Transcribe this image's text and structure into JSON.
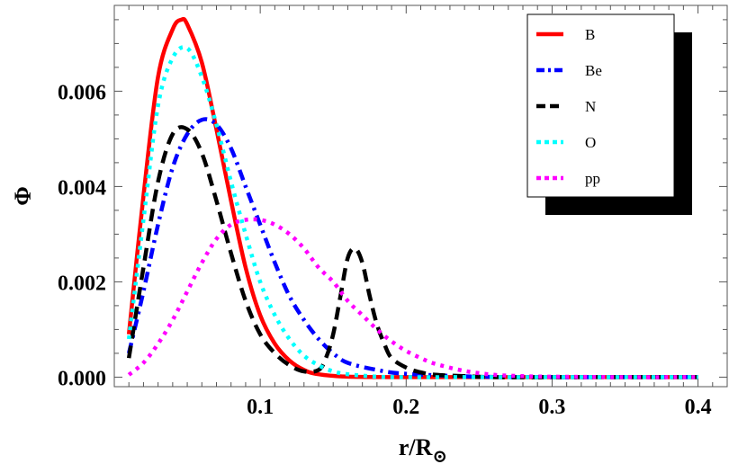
{
  "chart_data": {
    "type": "line",
    "title": "",
    "xlabel": "r/R",
    "xlabel_subscript": "⊙",
    "ylabel": "Φ",
    "xlim": [
      0.0,
      0.42
    ],
    "ylim": [
      -0.0002,
      0.0078
    ],
    "xticks": [
      0.1,
      0.2,
      0.3,
      0.4
    ],
    "xtick_labels": [
      "0.1",
      "0.2",
      "0.3",
      "0.4"
    ],
    "yticks": [
      0.0,
      0.002,
      0.004,
      0.006
    ],
    "ytick_labels": [
      "0.000",
      "0.002",
      "0.004",
      "0.006"
    ],
    "legend_position": "top-right",
    "series": [
      {
        "name": "B",
        "color": "#ff0000",
        "dash": "solid",
        "x": [
          0.01,
          0.02,
          0.03,
          0.04,
          0.046,
          0.05,
          0.06,
          0.07,
          0.08,
          0.09,
          0.1,
          0.11,
          0.12,
          0.13,
          0.14,
          0.16,
          0.2,
          0.25,
          0.3,
          0.35,
          0.4
        ],
        "y": [
          0.0009,
          0.0038,
          0.0063,
          0.0073,
          0.0075,
          0.0074,
          0.0066,
          0.0052,
          0.0037,
          0.0023,
          0.0013,
          0.0007,
          0.00035,
          0.00015,
          6e-05,
          1e-05,
          0.0,
          0.0,
          0.0,
          0.0,
          0.0
        ]
      },
      {
        "name": "Be",
        "color": "#0000ff",
        "dash": "dashdot",
        "x": [
          0.01,
          0.02,
          0.03,
          0.04,
          0.05,
          0.06,
          0.07,
          0.08,
          0.09,
          0.1,
          0.11,
          0.12,
          0.13,
          0.14,
          0.15,
          0.16,
          0.18,
          0.2,
          0.25,
          0.3,
          0.35,
          0.4
        ],
        "y": [
          0.0005,
          0.0018,
          0.0032,
          0.0044,
          0.0051,
          0.0054,
          0.0053,
          0.0048,
          0.004,
          0.0032,
          0.0024,
          0.0017,
          0.0012,
          0.0008,
          0.0005,
          0.0003,
          0.00015,
          7e-05,
          1e-05,
          0.0,
          0.0,
          0.0
        ]
      },
      {
        "name": "N",
        "color": "#000000",
        "dash": "dashed",
        "x": [
          0.01,
          0.02,
          0.03,
          0.04,
          0.05,
          0.06,
          0.07,
          0.08,
          0.09,
          0.1,
          0.11,
          0.12,
          0.13,
          0.14,
          0.145,
          0.15,
          0.155,
          0.16,
          0.165,
          0.17,
          0.175,
          0.18,
          0.185,
          0.19,
          0.2,
          0.21,
          0.22,
          0.24,
          0.26,
          0.3,
          0.35,
          0.4
        ],
        "y": [
          0.0004,
          0.0023,
          0.0041,
          0.0051,
          0.0052,
          0.0047,
          0.0037,
          0.0026,
          0.0016,
          0.0009,
          0.0005,
          0.00025,
          0.00012,
          0.00015,
          0.0004,
          0.0009,
          0.0017,
          0.0025,
          0.0027,
          0.0024,
          0.0017,
          0.0011,
          0.0007,
          0.0004,
          0.0002,
          0.0001,
          5e-05,
          2e-05,
          0.0,
          0.0,
          0.0,
          0.0
        ]
      },
      {
        "name": "O",
        "color": "#00ffff",
        "dash": "dotted",
        "x": [
          0.01,
          0.02,
          0.03,
          0.04,
          0.05,
          0.06,
          0.07,
          0.08,
          0.09,
          0.1,
          0.11,
          0.12,
          0.13,
          0.14,
          0.15,
          0.16,
          0.18,
          0.2,
          0.25,
          0.3,
          0.35,
          0.4
        ],
        "y": [
          0.0008,
          0.0033,
          0.0057,
          0.0067,
          0.0069,
          0.0063,
          0.0053,
          0.0041,
          0.003,
          0.002,
          0.0013,
          0.0008,
          0.00045,
          0.00025,
          0.00012,
          6e-05,
          1e-05,
          0.0,
          0.0,
          0.0,
          0.0,
          0.0
        ]
      },
      {
        "name": "pp",
        "color": "#ff00ff",
        "dash": "dotted",
        "x": [
          0.01,
          0.02,
          0.03,
          0.04,
          0.05,
          0.06,
          0.07,
          0.08,
          0.09,
          0.1,
          0.11,
          0.12,
          0.13,
          0.14,
          0.15,
          0.16,
          0.17,
          0.18,
          0.19,
          0.2,
          0.21,
          0.22,
          0.24,
          0.26,
          0.28,
          0.3,
          0.35,
          0.4
        ],
        "y": [
          5e-05,
          0.0003,
          0.0007,
          0.0012,
          0.0018,
          0.0024,
          0.0029,
          0.0032,
          0.0033,
          0.0033,
          0.0032,
          0.003,
          0.0027,
          0.0023,
          0.002,
          0.0016,
          0.0013,
          0.001,
          0.00075,
          0.00055,
          0.0004,
          0.00028,
          0.00013,
          5e-05,
          2e-05,
          1e-05,
          0.0,
          0.0
        ]
      }
    ]
  }
}
